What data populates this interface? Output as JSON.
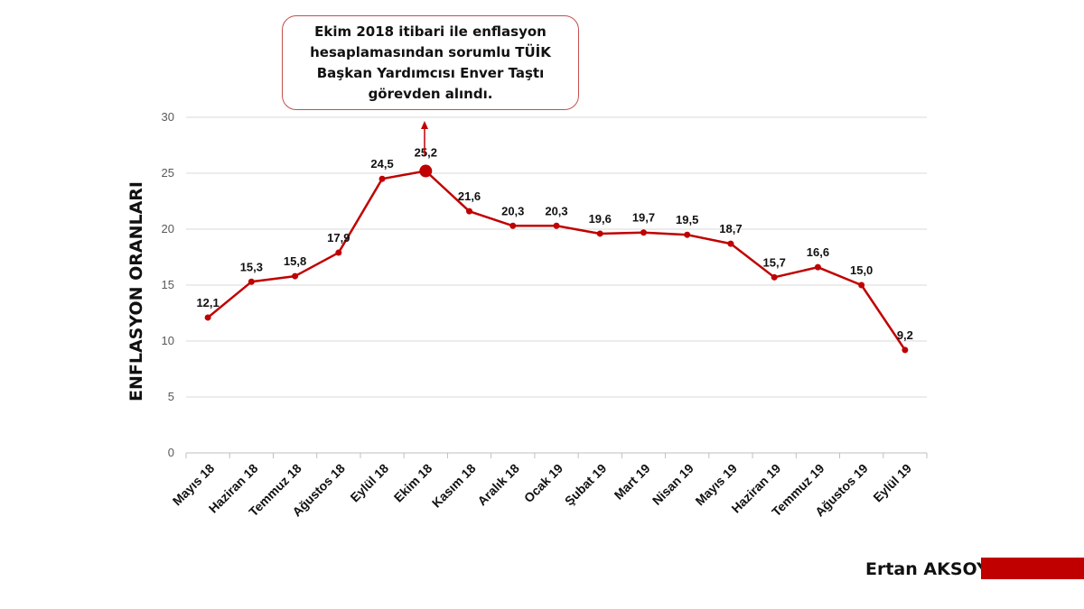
{
  "callout": {
    "text": "Ekim 2018 itibari ile enflasyon hesaplamasından sorumlu TÜİK Başkan Yardımcısı Enver Taştı görevden alındı."
  },
  "author": "Ertan AKSOY",
  "colors": {
    "line": "#c00000",
    "grid": "#d9d9d9",
    "callout_border": "#c0504d",
    "author_bar": "#c00000"
  },
  "chart_data": {
    "type": "line",
    "title": "",
    "xlabel": "",
    "ylabel": "ENFLASYON ORANLARI",
    "ylim": [
      0,
      30
    ],
    "yticks": [
      0,
      5,
      10,
      15,
      20,
      25,
      30
    ],
    "grid": true,
    "categories": [
      "Mayıs 18",
      "Haziran 18",
      "Temmuz 18",
      "Ağustos 18",
      "Eylül 18",
      "Ekim 18",
      "Kasım 18",
      "Aralık 18",
      "Ocak 19",
      "Şubat 19",
      "Mart 19",
      "Nisan 19",
      "Mayıs 19",
      "Haziran 19",
      "Temmuz 19",
      "Ağustos 19",
      "Eylül 19"
    ],
    "values": [
      12.1,
      15.3,
      15.8,
      17.9,
      24.5,
      25.2,
      21.6,
      20.3,
      20.3,
      19.6,
      19.7,
      19.5,
      18.7,
      15.7,
      16.6,
      15.0,
      9.2
    ],
    "data_labels": [
      "12,1",
      "15,3",
      "15,8",
      "17,9",
      "24,5",
      "25,2",
      "21,6",
      "20,3",
      "20,3",
      "19,6",
      "19,7",
      "19,5",
      "18,7",
      "15,7",
      "16,6",
      "15,0",
      "9,2"
    ],
    "highlight_index": 5
  }
}
